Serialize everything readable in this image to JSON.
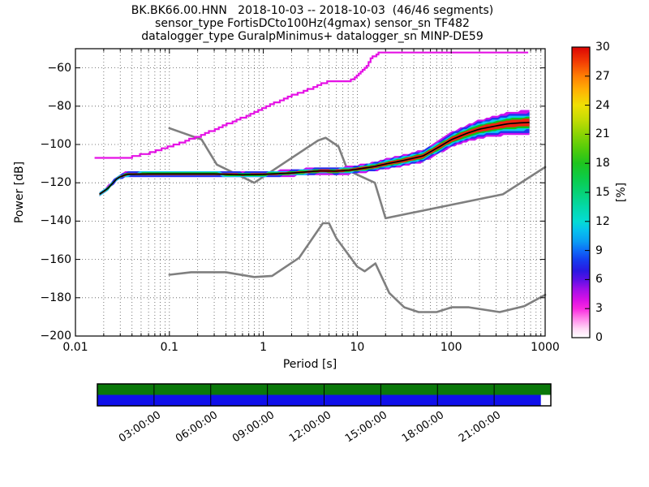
{
  "chart_data": {
    "type": "heatmap",
    "description": "Probabilistic power spectral density (PPSD) plot with Peterson noise model lines, envelope line, colorbar and data-coverage timeline",
    "title_lines": [
      "BK.BK66.00.HNN   2018-10-03 -- 2018-10-03  (46/46 segments)",
      "sensor_type FortisDCto100Hz(4gmax) sensor_sn TF482",
      "datalogger_type GuralpMinimus+ datalogger_sn MINP-DE59"
    ],
    "xlabel": "Period [s]",
    "ylabel": "Power [dB]",
    "xscale": "log",
    "xlim": [
      0.01,
      1000
    ],
    "ylim": [
      -200,
      -50
    ],
    "grid": true,
    "xticks": [
      {
        "value": 0.01,
        "label": "0.01"
      },
      {
        "value": 0.1,
        "label": "0.1"
      },
      {
        "value": 1,
        "label": "1"
      },
      {
        "value": 10,
        "label": "10"
      },
      {
        "value": 100,
        "label": "100"
      },
      {
        "value": 1000,
        "label": "1000"
      }
    ],
    "yticks": [
      {
        "value": -60,
        "label": "−60"
      },
      {
        "value": -80,
        "label": "−80"
      },
      {
        "value": -100,
        "label": "−100"
      },
      {
        "value": -120,
        "label": "−120"
      },
      {
        "value": -140,
        "label": "−140"
      },
      {
        "value": -160,
        "label": "−160"
      },
      {
        "value": -180,
        "label": "−180"
      },
      {
        "value": -200,
        "label": "−200"
      }
    ],
    "colorbar": {
      "label": "[%]",
      "lim": [
        0,
        30
      ],
      "ticks": [
        {
          "value": 0,
          "label": "0"
        },
        {
          "value": 3,
          "label": "3"
        },
        {
          "value": 6,
          "label": "6"
        },
        {
          "value": 9,
          "label": "9"
        },
        {
          "value": 12,
          "label": "12"
        },
        {
          "value": 15,
          "label": "15"
        },
        {
          "value": 18,
          "label": "18"
        },
        {
          "value": 21,
          "label": "21"
        },
        {
          "value": 24,
          "label": "24"
        },
        {
          "value": 27,
          "label": "27"
        },
        {
          "value": 30,
          "label": "30"
        }
      ],
      "gradient_stops": [
        [
          0.0,
          "#ffffff"
        ],
        [
          0.03,
          "#ffd9f6"
        ],
        [
          0.07,
          "#ff7ae8"
        ],
        [
          0.1,
          "#f928e0"
        ],
        [
          0.13,
          "#d911e6"
        ],
        [
          0.17,
          "#9b0fe8"
        ],
        [
          0.2,
          "#5a10e6"
        ],
        [
          0.23,
          "#2a18e2"
        ],
        [
          0.27,
          "#1440f0"
        ],
        [
          0.3,
          "#0e6cf8"
        ],
        [
          0.33,
          "#0a9cf4"
        ],
        [
          0.37,
          "#06c2ee"
        ],
        [
          0.4,
          "#04dcd4"
        ],
        [
          0.45,
          "#04d8a8"
        ],
        [
          0.5,
          "#06d276"
        ],
        [
          0.55,
          "#0ccc48"
        ],
        [
          0.6,
          "#1ec41e"
        ],
        [
          0.65,
          "#52cc0a"
        ],
        [
          0.7,
          "#8ad404"
        ],
        [
          0.75,
          "#c4dc04"
        ],
        [
          0.8,
          "#f0e004"
        ],
        [
          0.85,
          "#ffb404"
        ],
        [
          0.9,
          "#ff7e04"
        ],
        [
          0.95,
          "#f23c04"
        ],
        [
          1.0,
          "#dc0404"
        ]
      ]
    },
    "series": [
      {
        "name": "noise-model-low-NLNM",
        "color": "#7f7f7f",
        "width": 2.6,
        "points": [
          [
            0.1,
            -168.0
          ],
          [
            0.17,
            -166.7
          ],
          [
            0.4,
            -166.7
          ],
          [
            0.8,
            -169.2
          ],
          [
            1.24,
            -168.6
          ],
          [
            2.4,
            -159.2
          ],
          [
            4.3,
            -141.1
          ],
          [
            5,
            -141.1
          ],
          [
            6,
            -149.0
          ],
          [
            10,
            -163.8
          ],
          [
            12,
            -166.2
          ],
          [
            15.6,
            -162.1
          ],
          [
            21.9,
            -177.5
          ],
          [
            31.6,
            -185.0
          ],
          [
            45,
            -187.5
          ],
          [
            70,
            -187.5
          ],
          [
            101,
            -185.0
          ],
          [
            154,
            -185.0
          ],
          [
            328,
            -187.5
          ],
          [
            600,
            -184.4
          ],
          [
            1000,
            -178.5
          ]
        ]
      },
      {
        "name": "noise-model-high-NHNM",
        "color": "#7f7f7f",
        "width": 2.6,
        "points": [
          [
            0.1,
            -91.5
          ],
          [
            0.22,
            -97.4
          ],
          [
            0.32,
            -110.5
          ],
          [
            0.8,
            -120.0
          ],
          [
            3.8,
            -98.0
          ],
          [
            4.6,
            -96.5
          ],
          [
            6.3,
            -101.0
          ],
          [
            7.9,
            -113.5
          ],
          [
            15.4,
            -120.0
          ],
          [
            20,
            -138.5
          ],
          [
            354.8,
            -126.0
          ],
          [
            1000,
            -111.8
          ]
        ]
      },
      {
        "name": "max-envelope",
        "color": "#e512e5",
        "width": 2.2,
        "style": "stepped",
        "points": [
          [
            0.016,
            -107
          ],
          [
            0.035,
            -107
          ],
          [
            0.06,
            -104.5
          ],
          [
            0.1,
            -101
          ],
          [
            0.2,
            -96
          ],
          [
            0.4,
            -89.5
          ],
          [
            0.6,
            -86
          ],
          [
            1.1,
            -80
          ],
          [
            2,
            -74.5
          ],
          [
            3.5,
            -70
          ],
          [
            5,
            -66.7
          ],
          [
            8.3,
            -66.5
          ],
          [
            10,
            -64.3
          ],
          [
            12,
            -60
          ],
          [
            14,
            -55
          ],
          [
            17,
            -51.8
          ],
          [
            660,
            -51.8
          ]
        ]
      }
    ],
    "psd_band": {
      "mode_line_color": "#000000",
      "mode_points": [
        [
          0.018,
          -126
        ],
        [
          0.022,
          -123
        ],
        [
          0.028,
          -117.5
        ],
        [
          0.035,
          -115.6
        ],
        [
          0.06,
          -115.4
        ],
        [
          0.1,
          -115.4
        ],
        [
          0.3,
          -115.4
        ],
        [
          0.6,
          -115.8
        ],
        [
          1,
          -115.6
        ],
        [
          2,
          -114.9
        ],
        [
          4,
          -113.8
        ],
        [
          6,
          -113.9
        ],
        [
          8,
          -113.5
        ],
        [
          10,
          -112.9
        ],
        [
          15,
          -111.6
        ],
        [
          20,
          -110.2
        ],
        [
          30,
          -108.5
        ],
        [
          50,
          -106
        ],
        [
          70,
          -102
        ],
        [
          100,
          -97.5
        ],
        [
          150,
          -94
        ],
        [
          200,
          -92
        ],
        [
          300,
          -90.3
        ],
        [
          400,
          -89.2
        ],
        [
          550,
          -88.7
        ],
        [
          680,
          -88.5
        ]
      ],
      "spread_points": [
        [
          0.018,
          1.2
        ],
        [
          0.05,
          1.6
        ],
        [
          1,
          1.6
        ],
        [
          10,
          2.2
        ],
        [
          30,
          3
        ],
        [
          70,
          3.5
        ],
        [
          150,
          4.5
        ],
        [
          300,
          5.5
        ],
        [
          450,
          6.3
        ],
        [
          680,
          6.3
        ]
      ],
      "layers": [
        {
          "color": "#cc10f0",
          "frac": 1.0
        },
        {
          "color": "#2233ee",
          "frac": 0.8
        },
        {
          "color": "#0ac8f0",
          "frac": 0.62
        },
        {
          "color": "#0cc41c",
          "frac": 0.45
        },
        {
          "color": "#ee2211",
          "frac": 0.3
        }
      ]
    },
    "timeline": {
      "labels": [
        {
          "hour": 3,
          "label": "03:00:00"
        },
        {
          "hour": 6,
          "label": "06:00:00"
        },
        {
          "hour": 9,
          "label": "09:00:00"
        },
        {
          "hour": 12,
          "label": "12:00:00"
        },
        {
          "hour": 15,
          "label": "15:00:00"
        },
        {
          "hour": 18,
          "label": "18:00:00"
        },
        {
          "hour": 21,
          "label": "21:00:00"
        }
      ],
      "hours_total": 24,
      "green_color": "#0a780a",
      "blue_color": "#0f0fea",
      "coverage_fraction": 0.978
    }
  }
}
